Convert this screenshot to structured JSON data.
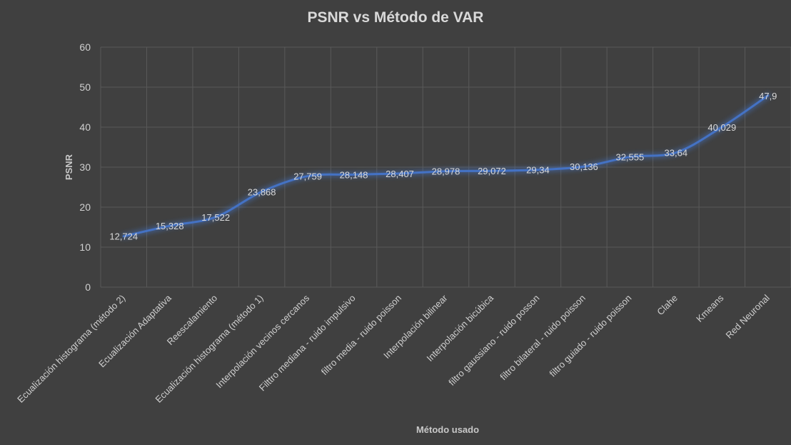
{
  "chart_data": {
    "type": "line",
    "title": "PSNR vs Método de VAR",
    "xlabel": "Método usado",
    "ylabel": "PSNR",
    "ylim": [
      0,
      60
    ],
    "yticks": [
      0,
      10,
      20,
      30,
      40,
      50,
      60
    ],
    "grid": true,
    "legend": "none",
    "series_color": "#4472C4",
    "categories": [
      "Ecualización histograma (método 2)",
      "Ecualización Adaptativa",
      "Reescalamiento",
      "Ecualización histograma (método 1)",
      "Interpolación vecinos cercanos",
      "Filttro mediana - ruido impulsivo",
      "filtro media - ruido poisson",
      "Interpolación bilinear",
      "Interpolación bicúbica",
      "filtro gaussiano - ruido posson",
      "filtro bilateral - ruido poisson",
      "filtro guiado - ruido poisson",
      "Clahe",
      "Kmeans",
      "Red Neuronal"
    ],
    "values": [
      12.724,
      15.328,
      17.522,
      23.868,
      27.759,
      28.148,
      28.407,
      28.978,
      29.072,
      29.34,
      30.136,
      32.555,
      33.64,
      40.029,
      47.9
    ],
    "data_labels": [
      "12,724",
      "15,328",
      "17,522",
      "23,868",
      "27,759",
      "28,148",
      "28,407",
      "28,978",
      "29,072",
      "29,34",
      "30,136",
      "32,555",
      "33,64",
      "40,029",
      "47,9"
    ]
  }
}
